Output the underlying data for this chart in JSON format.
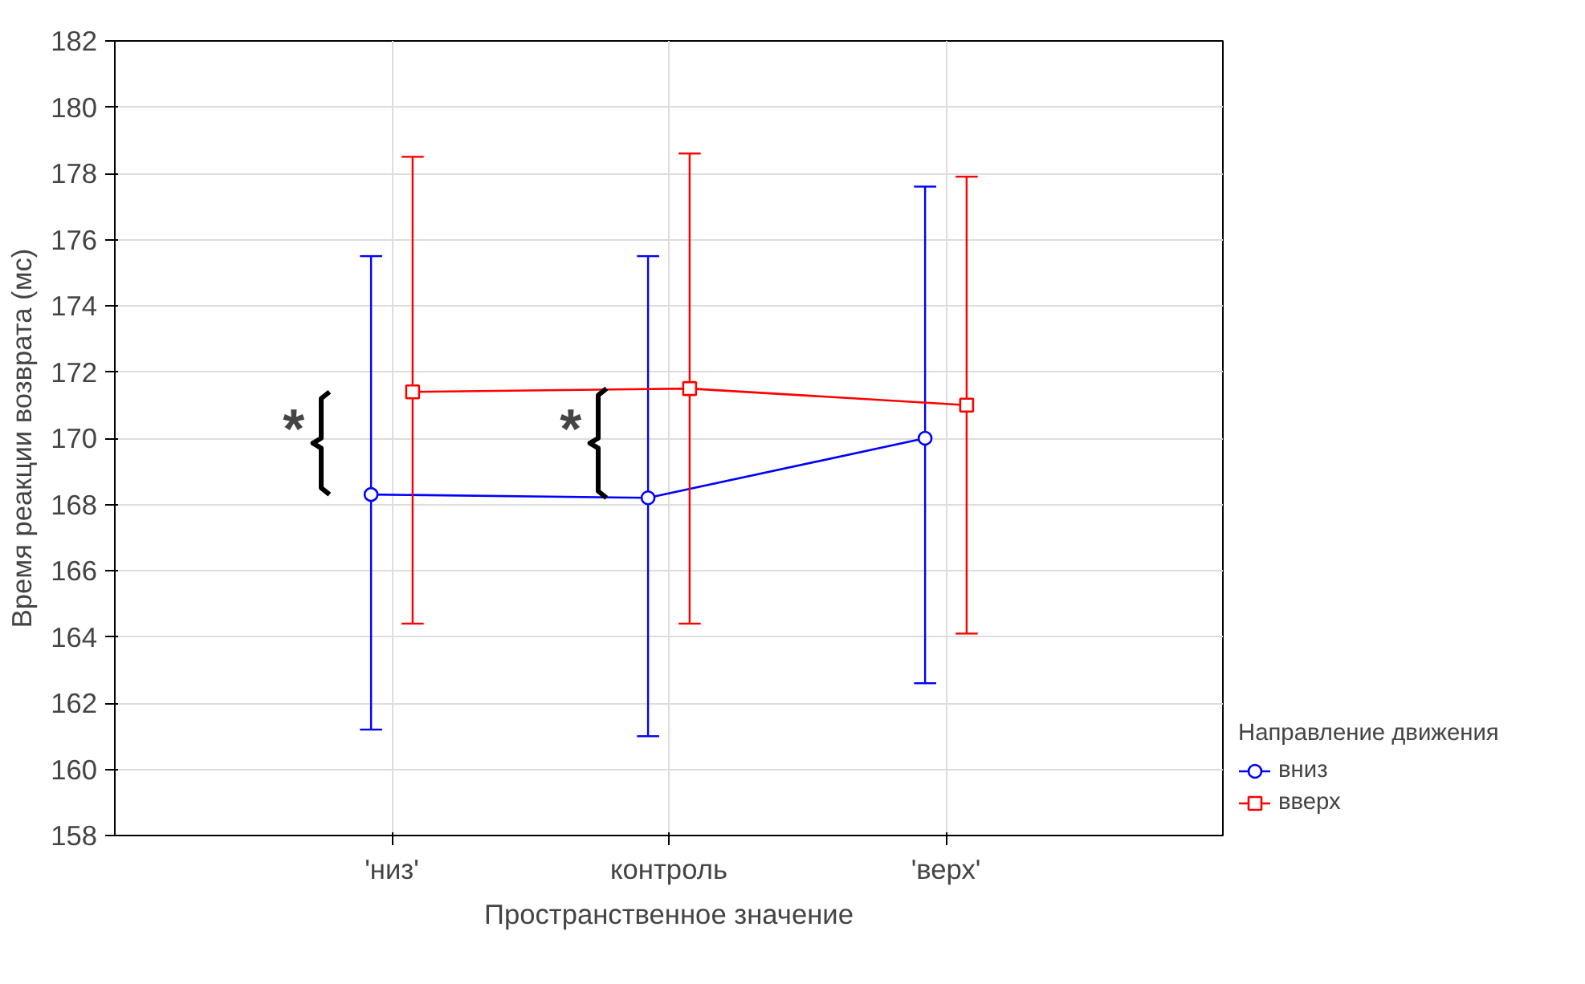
{
  "chart_data": {
    "type": "line",
    "xlabel": "Пространственное значение",
    "ylabel": "Время реакции возврата (мс)",
    "legend_title": "Направление движения",
    "categories": [
      "'низ'",
      "контроль",
      "'верх'"
    ],
    "ylim": [
      158,
      182
    ],
    "yticks": [
      158,
      160,
      162,
      164,
      166,
      168,
      170,
      172,
      174,
      176,
      178,
      180,
      182
    ],
    "grid": true,
    "legend": "right",
    "series": [
      {
        "name": "вниз",
        "color": "#0000ff",
        "marker": "circle",
        "values": [
          168.3,
          168.2,
          170.0
        ],
        "errors": [
          [
            161.2,
            175.5
          ],
          [
            161.0,
            175.5
          ],
          [
            162.6,
            177.6
          ]
        ]
      },
      {
        "name": "вверх",
        "color": "#ff0000",
        "marker": "square",
        "values": [
          171.4,
          171.5,
          171.0
        ],
        "errors": [
          [
            164.4,
            178.5
          ],
          [
            164.4,
            178.6
          ],
          [
            164.1,
            177.9
          ]
        ]
      }
    ],
    "annotations": [
      "*",
      "*"
    ]
  }
}
